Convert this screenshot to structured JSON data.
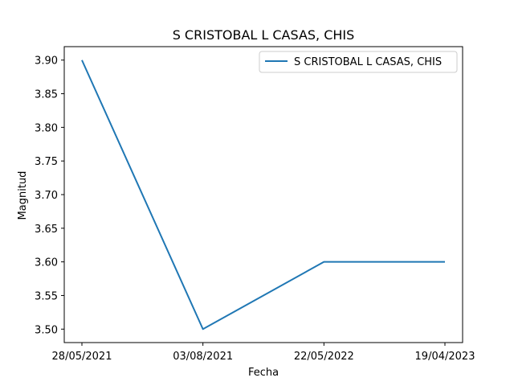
{
  "chart_data": {
    "type": "line",
    "title": "S CRISTOBAL L CASAS, CHIS",
    "xlabel": "Fecha",
    "ylabel": "Magnitud",
    "categories": [
      "28/05/2021",
      "03/08/2021",
      "22/05/2022",
      "19/04/2023"
    ],
    "yticks": [
      "3.50",
      "3.55",
      "3.60",
      "3.65",
      "3.70",
      "3.75",
      "3.80",
      "3.85",
      "3.90"
    ],
    "ylim": [
      3.48,
      3.92
    ],
    "grid": false,
    "legend_position": "top-right",
    "series": [
      {
        "name": "S CRISTOBAL L CASAS, CHIS",
        "color": "#1f77b4",
        "values": [
          3.9,
          3.5,
          3.6,
          3.6
        ]
      }
    ]
  }
}
